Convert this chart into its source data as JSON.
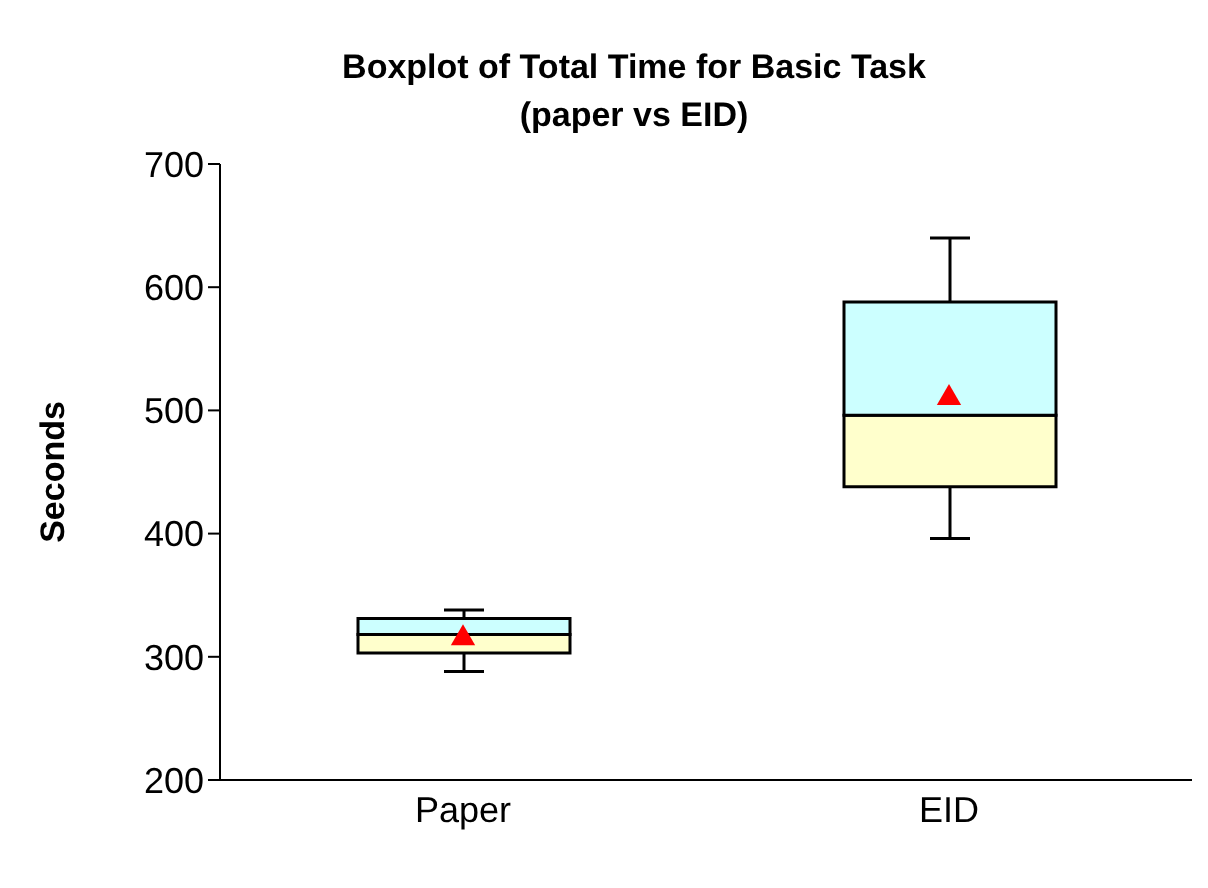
{
  "chart_data": {
    "type": "box",
    "title": "Boxplot of Total Time for Basic Task\n(paper vs EID)",
    "ylabel": "Seconds",
    "categories": [
      "Paper",
      "EID"
    ],
    "boxes": [
      {
        "low": 288,
        "q1": 303,
        "median": 318,
        "q3": 331,
        "high": 338,
        "mean": 315
      },
      {
        "low": 396,
        "q1": 438,
        "median": 496,
        "q3": 588,
        "high": 640,
        "mean": 510
      }
    ],
    "marker": "triangle",
    "ylim": [
      200,
      700
    ],
    "yticks": [
      200,
      300,
      400,
      500,
      600,
      700
    ],
    "grid": false,
    "legend": false
  }
}
